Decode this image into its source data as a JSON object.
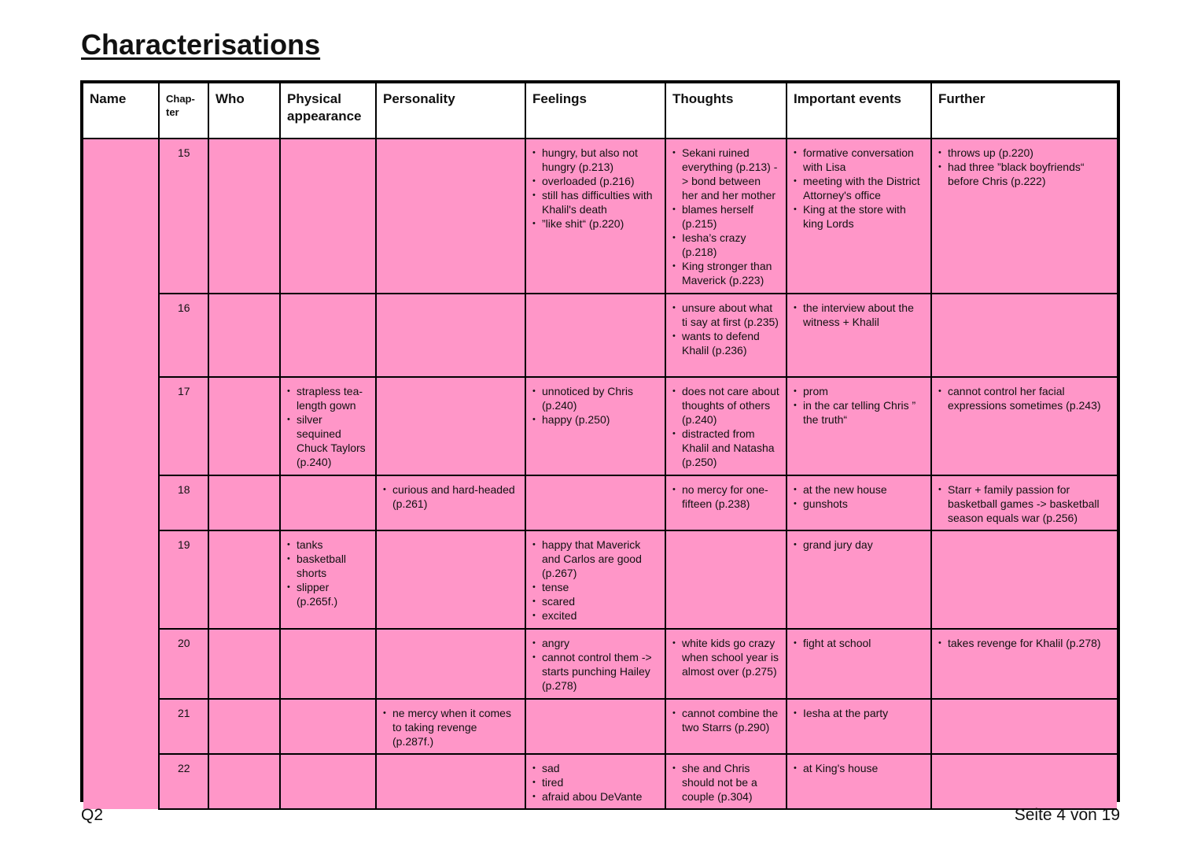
{
  "title": "Characterisations",
  "headers": [
    "Name",
    "Chap-\nter",
    "Who",
    "Physical appearance",
    "Personality",
    "Feelings",
    "Thoughts",
    "Important events",
    "Further"
  ],
  "rows": [
    {
      "chapter": "15",
      "who": [],
      "physical": [],
      "personality": [],
      "feelings": [
        "hungry, but also not hungry (p.213)",
        "overloaded (p.216)",
        "still has difficulties with Khalil's death",
        "”like shit“ (p.220)"
      ],
      "thoughts": [
        "Sekani ruined everything (p.213) -> bond between her and her mother",
        "blames herself (p.215)",
        "Iesha’s crazy (p.218)",
        "King stronger than Maverick (p.223)"
      ],
      "events": [
        "formative conversation with Lisa",
        "meeting with the District Attorney's office",
        "King at the store with king Lords"
      ],
      "further": [
        "throws up (p.220)",
        "had three ”black boyfriends“ before Chris (p.222)"
      ]
    },
    {
      "chapter": "16",
      "who": [],
      "physical": [],
      "personality": [],
      "feelings": [],
      "thoughts": [
        "unsure about what ti say at first (p.235)",
        "wants to defend Khalil (p.236)"
      ],
      "events": [
        "the interview about the witness + Khalil"
      ],
      "further": []
    },
    {
      "chapter": "17",
      "who": [],
      "physical": [
        "strapless tea-length gown",
        "silver sequined Chuck Taylors (p.240)"
      ],
      "personality": [],
      "feelings": [
        "unnoticed by Chris (p.240)",
        "happy (p.250)"
      ],
      "thoughts": [
        "does not care about thoughts of others (p.240)",
        "distracted from Khalil and Natasha (p.250)"
      ],
      "events": [
        "prom",
        "in the car telling Chris ” the truth“"
      ],
      "further": [
        "cannot control her facial expressions sometimes (p.243)"
      ]
    },
    {
      "chapter": "18",
      "who": [],
      "physical": [],
      "personality": [
        "curious and hard-headed (p.261)"
      ],
      "feelings": [],
      "thoughts": [
        "no mercy for one-fifteen (p.238)"
      ],
      "events": [
        "at the new house",
        "gunshots"
      ],
      "further": [
        "Starr + family passion for basketball games -> basketball season equals war (p.256)"
      ]
    },
    {
      "chapter": "19",
      "who": [],
      "physical": [
        "tanks",
        "basketball shorts",
        "slipper (p.265f.)"
      ],
      "personality": [],
      "feelings": [
        "happy that Maverick and Carlos are good (p.267)",
        "tense",
        "scared",
        "excited"
      ],
      "thoughts": [],
      "events": [
        "grand jury day"
      ],
      "further": []
    },
    {
      "chapter": "20",
      "who": [],
      "physical": [],
      "personality": [],
      "feelings": [
        "angry",
        "cannot control them -> starts punching Hailey (p.278)"
      ],
      "thoughts": [
        "white kids go crazy when school year is almost over (p.275)"
      ],
      "events": [
        "fight at school"
      ],
      "further": [
        "takes revenge for Khalil (p.278)"
      ]
    },
    {
      "chapter": "21",
      "who": [],
      "physical": [],
      "personality": [
        "ne mercy when it comes to taking revenge (p.287f.)"
      ],
      "feelings": [],
      "thoughts": [
        "cannot combine the two Starrs (p.290)"
      ],
      "events": [
        "Iesha at the party"
      ],
      "further": []
    },
    {
      "chapter": "22",
      "who": [],
      "physical": [],
      "personality": [],
      "feelings": [
        "sad",
        "tired",
        "afraid abou DeVante"
      ],
      "thoughts": [
        "she and Chris should not be a couple  (p.304)"
      ],
      "events": [
        "at King's house"
      ],
      "further": []
    }
  ],
  "footer": {
    "left": "Q2",
    "right": "Seite 4 von 19"
  },
  "colors": {
    "row_fill": "#ff96c8",
    "border": "#000000"
  }
}
